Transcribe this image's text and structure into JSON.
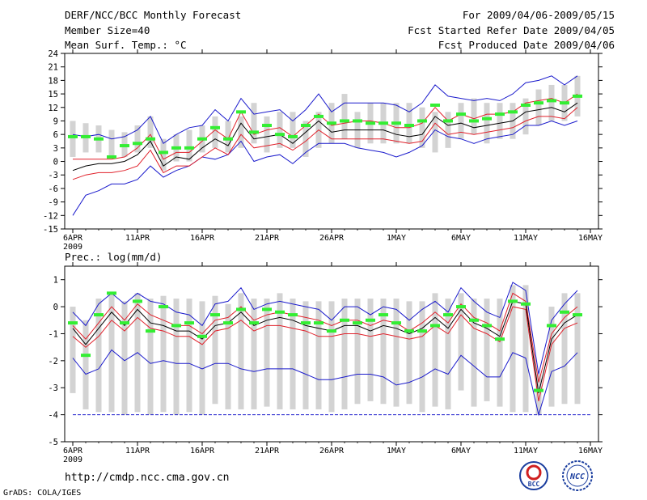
{
  "header": {
    "title": "DERF/NCC/BCC Monthly Forecast",
    "member_size": "Member Size=40",
    "variable": "Mean Surf. Temp.: °C",
    "forecast_range": "For 2009/04/06-2009/05/15",
    "refer_date": "Fcst Started Refer Date 2009/04/05",
    "produced_date": "Fcst Produced Date 2009/04/06"
  },
  "footer": {
    "url": "http://cmdp.ncc.cma.gov.cn",
    "grads_credit": "GrADS: COLA/IGES",
    "logo_bcc": "BCC",
    "logo_ncc": "NCC"
  },
  "colors": {
    "box": "#d3d3d3",
    "ensemble_mean": "#000000",
    "spread_band": "#e0202a",
    "extreme": "#1a1acc",
    "climatology_mark": "#33ee33",
    "floor_line": "#1a1acc"
  },
  "chart_data": [
    {
      "type": "box",
      "title": "Mean Surf. Temp.: °C",
      "x_tick_labels": [
        "6APR",
        "11APR",
        "16APR",
        "21APR",
        "26APR",
        "1MAY",
        "6MAY",
        "11MAY",
        "16MAY"
      ],
      "x_tick_days": [
        0,
        5,
        10,
        15,
        20,
        25,
        30,
        35,
        40
      ],
      "x_sublabel": "2009",
      "ylim": [
        -15,
        24
      ],
      "y_ticks": [
        -15,
        -12,
        -9,
        -6,
        -3,
        0,
        3,
        6,
        9,
        12,
        15,
        18,
        21,
        24
      ],
      "days": [
        0,
        1,
        2,
        3,
        4,
        5,
        6,
        7,
        8,
        9,
        10,
        11,
        12,
        13,
        14,
        15,
        16,
        17,
        18,
        19,
        20,
        21,
        22,
        23,
        24,
        25,
        26,
        27,
        28,
        29,
        30,
        31,
        32,
        33,
        34,
        35,
        36,
        37,
        38,
        39
      ],
      "box_top": [
        9,
        8.5,
        8,
        7,
        6.5,
        8,
        10,
        5,
        6,
        7,
        8,
        10,
        9,
        10,
        13,
        10,
        11,
        11,
        9,
        11,
        13,
        15,
        11,
        13,
        13,
        13,
        13,
        12,
        11,
        11,
        13,
        14,
        13,
        13,
        13,
        14,
        16,
        17,
        17,
        19
      ],
      "box_bottom": [
        1,
        2,
        2,
        1,
        1,
        2,
        3,
        -2,
        0,
        0,
        2,
        3,
        2,
        3,
        4,
        2,
        3,
        3,
        1,
        3,
        4,
        5,
        3,
        4,
        4,
        4,
        4,
        3,
        2,
        3,
        5,
        6,
        4,
        5,
        5,
        6,
        8,
        9,
        9,
        10
      ],
      "max": [
        6,
        5.5,
        6,
        5,
        5.5,
        7,
        10,
        4,
        6,
        7.5,
        8,
        11.5,
        9,
        14,
        10.5,
        11,
        11.5,
        9,
        11.5,
        15,
        11,
        13,
        13,
        13,
        13,
        12.5,
        11,
        13,
        17,
        14.5,
        14,
        13.5,
        14,
        13.5,
        15,
        17.5,
        18,
        19,
        17,
        19
      ],
      "upper": [
        0.5,
        0.5,
        0.5,
        0.5,
        1,
        3,
        6,
        0.5,
        2,
        2,
        4.5,
        7,
        5,
        11,
        6,
        7,
        7.5,
        5.5,
        8,
        10.5,
        8,
        8.5,
        9,
        9,
        8.5,
        7.5,
        7.5,
        8.5,
        12,
        9,
        10.5,
        9.5,
        10.5,
        10.5,
        11,
        13,
        13.5,
        14,
        13,
        15
      ],
      "mean": [
        -2,
        -1,
        -0.5,
        -0.5,
        0,
        1.5,
        4.5,
        -1,
        1,
        0.5,
        3,
        5,
        3.5,
        8.5,
        5,
        5.5,
        6,
        4,
        6.5,
        9,
        6.5,
        7,
        7,
        7,
        7,
        6,
        5.5,
        6,
        10,
        8,
        8.5,
        7.5,
        8,
        8.5,
        9,
        11,
        11.5,
        12,
        11,
        13
      ],
      "lower": [
        -4,
        -3,
        -2.5,
        -2.5,
        -2,
        -1,
        2.5,
        -2.5,
        -1,
        -1,
        1,
        3,
        1.5,
        6,
        3,
        3.5,
        4,
        2.5,
        4.5,
        7,
        5,
        5,
        5,
        5,
        5,
        4.5,
        4,
        4.5,
        8.5,
        6,
        6.5,
        6,
        6.5,
        7,
        7.5,
        9,
        10,
        10,
        9.5,
        12
      ],
      "min": [
        -12,
        -7.5,
        -6.5,
        -5,
        -5,
        -4,
        -1,
        -3.5,
        -2,
        -1,
        1,
        0.5,
        1.5,
        4.5,
        0,
        1,
        1.5,
        -0.5,
        2,
        4,
        4,
        4,
        3,
        2.5,
        2,
        1,
        2,
        3.5,
        7,
        5.5,
        5,
        4,
        5,
        5.5,
        6,
        8,
        8,
        9,
        8,
        9
      ],
      "climatology": [
        5.5,
        5.5,
        5,
        1,
        3.5,
        4,
        5,
        2,
        3,
        3,
        5,
        7.5,
        5,
        11,
        6.5,
        8,
        6,
        5.5,
        8,
        10,
        8.5,
        9,
        9,
        8.5,
        8.5,
        8.5,
        8,
        9,
        12.5,
        9,
        10.5,
        9,
        9.5,
        10.5,
        11,
        12.5,
        13,
        13.5,
        13,
        14.5
      ]
    },
    {
      "type": "box",
      "title": "Prec.: log(mm/d)",
      "x_tick_labels": [
        "6APR",
        "11APR",
        "16APR",
        "21APR",
        "26APR",
        "1MAY",
        "6MAY",
        "11MAY",
        "16MAY"
      ],
      "x_tick_days": [
        0,
        5,
        10,
        15,
        20,
        25,
        30,
        35,
        40
      ],
      "x_sublabel": "2009",
      "ylim": [
        -5,
        1.5
      ],
      "y_ticks": [
        -5,
        -4,
        -3,
        -2,
        -1,
        0,
        1
      ],
      "floor": -4,
      "days": [
        0,
        1,
        2,
        3,
        4,
        5,
        6,
        7,
        8,
        9,
        10,
        11,
        12,
        13,
        14,
        15,
        16,
        17,
        18,
        19,
        20,
        21,
        22,
        23,
        24,
        25,
        26,
        27,
        28,
        29,
        30,
        31,
        32,
        33,
        34,
        35,
        36,
        37,
        38,
        39
      ],
      "box_top": [
        0,
        -0.5,
        0.3,
        0.5,
        0.2,
        0.5,
        0.3,
        0.4,
        0.3,
        0.3,
        0.2,
        0.4,
        0.1,
        0.5,
        0.3,
        0.3,
        0.5,
        0.3,
        0.2,
        0.2,
        0.2,
        0.3,
        0.3,
        0.3,
        0.3,
        0.3,
        0.2,
        0.2,
        0.5,
        0.3,
        0.5,
        0.3,
        0.3,
        0.3,
        0.8,
        0.8,
        -2.5,
        0,
        0.5,
        0.5
      ],
      "box_bottom": [
        -3.2,
        -3.8,
        -3.9,
        -3.9,
        -4,
        -3.9,
        -4,
        -3.9,
        -4,
        -3.9,
        -4,
        -3.6,
        -3.8,
        -3.8,
        -3.8,
        -3.7,
        -3.8,
        -3.8,
        -3.8,
        -3.8,
        -3.9,
        -3.8,
        -3.6,
        -3.5,
        -3.6,
        -3.7,
        -3.6,
        -3.9,
        -3.7,
        -3.8,
        -3.1,
        -3.7,
        -3.5,
        -3.7,
        -3.9,
        -3.9,
        -4,
        -3.7,
        -3.6,
        -3.6
      ],
      "max": [
        -0.2,
        -0.7,
        0.1,
        0.5,
        0.1,
        0.5,
        0.2,
        0.1,
        -0.2,
        -0.3,
        -0.7,
        0.1,
        0.2,
        0.7,
        -0.1,
        0.1,
        0.2,
        0.1,
        0,
        -0.1,
        -0.5,
        0,
        0,
        -0.3,
        0,
        -0.1,
        -0.5,
        -0.1,
        0.2,
        -0.2,
        0.7,
        0.2,
        -0.2,
        -0.4,
        0.9,
        0.6,
        -2.5,
        -0.5,
        0.1,
        0.6
      ],
      "upper": [
        -0.7,
        -1.2,
        -0.6,
        0,
        -0.5,
        0.1,
        -0.3,
        -0.5,
        -0.7,
        -0.7,
        -1,
        -0.5,
        -0.4,
        0,
        -0.5,
        -0.3,
        -0.2,
        -0.3,
        -0.4,
        -0.5,
        -0.7,
        -0.5,
        -0.5,
        -0.7,
        -0.5,
        -0.6,
        -0.9,
        -0.6,
        -0.2,
        -0.6,
        0.1,
        -0.4,
        -0.6,
        -0.9,
        0.5,
        0.2,
        -2.8,
        -1,
        -0.4,
        0
      ],
      "mean": [
        -0.8,
        -1.4,
        -0.8,
        -0.2,
        -0.7,
        -0.1,
        -0.6,
        -0.7,
        -0.9,
        -0.9,
        -1.2,
        -0.7,
        -0.6,
        -0.2,
        -0.7,
        -0.5,
        -0.4,
        -0.5,
        -0.7,
        -0.8,
        -0.9,
        -0.7,
        -0.7,
        -0.9,
        -0.7,
        -0.8,
        -1,
        -0.8,
        -0.4,
        -0.8,
        -0.1,
        -0.6,
        -0.8,
        -1.1,
        0.2,
        0.1,
        -3.2,
        -1.2,
        -0.6,
        -0.3
      ],
      "lower": [
        -1.1,
        -1.5,
        -1.1,
        -0.5,
        -0.9,
        -0.4,
        -0.8,
        -0.9,
        -1.1,
        -1.1,
        -1.4,
        -0.9,
        -0.8,
        -0.5,
        -0.9,
        -0.7,
        -0.7,
        -0.8,
        -0.9,
        -1.1,
        -1.1,
        -1,
        -1,
        -1.1,
        -1,
        -1.1,
        -1.2,
        -1.1,
        -0.7,
        -1,
        -0.3,
        -0.8,
        -1,
        -1.3,
        0,
        -0.1,
        -3.5,
        -1.4,
        -0.8,
        -0.6
      ],
      "min": [
        -1.9,
        -2.5,
        -2.3,
        -1.6,
        -2,
        -1.7,
        -2.1,
        -2,
        -2.1,
        -2.1,
        -2.3,
        -2.1,
        -2.1,
        -2.3,
        -2.4,
        -2.3,
        -2.3,
        -2.3,
        -2.5,
        -2.7,
        -2.7,
        -2.6,
        -2.5,
        -2.5,
        -2.6,
        -2.9,
        -2.8,
        -2.6,
        -2.3,
        -2.5,
        -1.8,
        -2.2,
        -2.6,
        -2.6,
        -1.7,
        -1.9,
        -4,
        -2.4,
        -2.2,
        -1.7
      ],
      "climatology": [
        -0.6,
        -1.8,
        -0.3,
        0.5,
        -0.6,
        0.2,
        -0.9,
        0,
        -0.7,
        -0.6,
        -1.1,
        -0.3,
        -0.6,
        -0.1,
        -0.6,
        -0.1,
        -0.2,
        -0.3,
        -0.6,
        -0.6,
        -0.9,
        -0.5,
        -0.6,
        -0.5,
        -0.3,
        -0.6,
        -0.9,
        -0.9,
        -0.7,
        -0.3,
        0,
        -0.5,
        -0.7,
        -1.2,
        0.2,
        0.1,
        -3.1,
        -0.7,
        -0.2,
        -0.3
      ]
    }
  ]
}
